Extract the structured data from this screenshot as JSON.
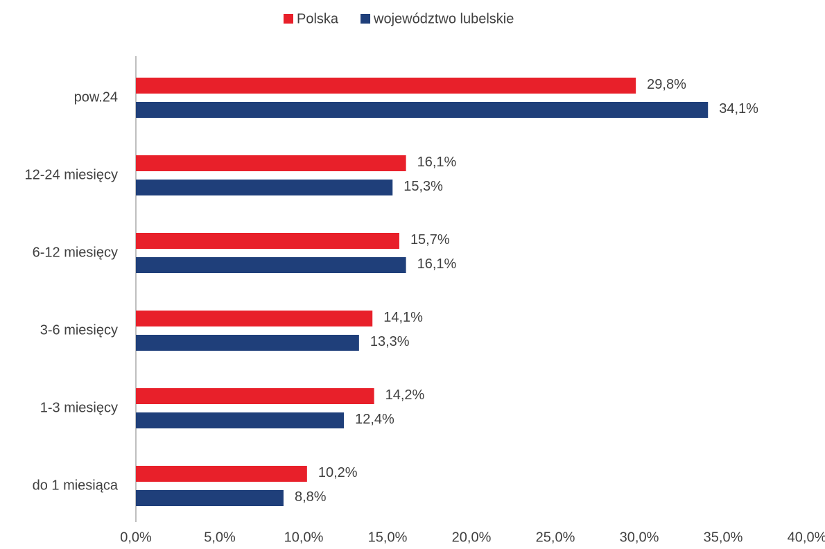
{
  "chart_data": {
    "type": "hbar",
    "categories": [
      "pow.24",
      "12-24 miesięcy",
      "6-12 miesięcy",
      "3-6 miesięcy",
      "1-3 miesięcy",
      "do 1 miesiąca"
    ],
    "series": [
      {
        "name": "Polska",
        "color": "#e8202a",
        "values": [
          29.8,
          16.1,
          15.7,
          14.1,
          14.2,
          10.2
        ],
        "value_labels": [
          "29,8%",
          "16,1%",
          "15,7%",
          "14,1%",
          "14,2%",
          "10,2%"
        ]
      },
      {
        "name": "województwo lubelskie",
        "color": "#1f3f7a",
        "values": [
          34.1,
          15.3,
          16.1,
          13.3,
          12.4,
          8.8
        ],
        "value_labels": [
          "34,1%",
          "15,3%",
          "16,1%",
          "13,3%",
          "12,4%",
          "8,8%"
        ]
      }
    ],
    "xlim": [
      0,
      40
    ],
    "xticks": [
      {
        "value": 0,
        "label": "0,0%"
      },
      {
        "value": 5,
        "label": "5,0%"
      },
      {
        "value": 10,
        "label": "10,0%"
      },
      {
        "value": 15,
        "label": "15,0%"
      },
      {
        "value": 20,
        "label": "20,0%"
      },
      {
        "value": 25,
        "label": "25,0%"
      },
      {
        "value": 30,
        "label": "30,0%"
      },
      {
        "value": 35,
        "label": "35,0%"
      },
      {
        "value": 40,
        "label": "40,0%"
      }
    ],
    "legend": "top",
    "grid": false
  }
}
